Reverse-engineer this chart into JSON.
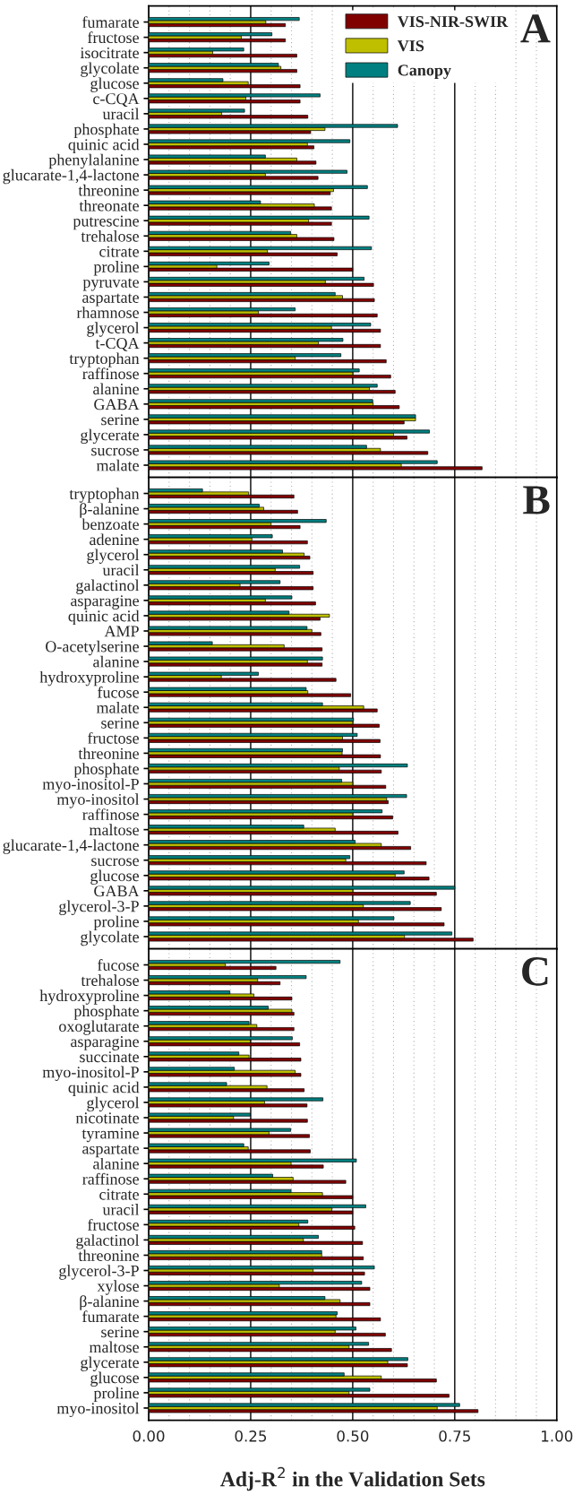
{
  "chart_data": [
    {
      "type": "bar",
      "orientation": "horizontal",
      "annotations": [
        "A"
      ],
      "legend": "top right",
      "grid": "x",
      "tick_labels": "y",
      "categories": [
        "fumarate",
        "fructose",
        "isocitrate",
        "glycolate",
        "glucose",
        "c-CQA",
        "uracil",
        "phosphate",
        "quinic acid",
        "phenylalanine",
        "glucarate-1,4-lactone",
        "threonine",
        "threonate",
        "putrescine",
        "trehalose",
        "citrate",
        "proline",
        "pyruvate",
        "aspartate",
        "rhamnose",
        "glycerol",
        "t-CQA",
        "tryptophan",
        "raffinose",
        "alanine",
        "GABA",
        "serine",
        "glycerate",
        "sucrose",
        "malate"
      ],
      "xlim": [
        0,
        1
      ],
      "xticks": [
        0,
        {
          "value": 0.05,
          "label": null
        },
        {
          "value": 0.1,
          "label": null
        },
        {
          "value": 0.15,
          "label": null
        },
        {
          "value": 0.2,
          "label": null
        },
        0.25,
        {
          "value": 0.3,
          "label": null
        },
        {
          "value": 0.35,
          "label": null
        },
        {
          "value": 0.4,
          "label": null
        },
        {
          "value": 0.45,
          "label": null
        },
        0.5,
        {
          "value": 0.55,
          "label": null
        },
        {
          "value": 0.6,
          "label": null
        },
        {
          "value": 0.65,
          "label": null
        },
        {
          "value": 0.7,
          "label": null
        },
        0.75,
        {
          "value": 0.8,
          "label": null
        },
        {
          "value": 0.85,
          "label": null
        },
        {
          "value": 0.9,
          "label": null
        },
        {
          "value": 0.95,
          "label": null
        },
        1
      ],
      "series": [
        {
          "name": "VIS-NIR-SWIR",
          "color": "#800000",
          "values": [
            0.335,
            0.335,
            0.363,
            0.363,
            0.371,
            0.371,
            0.39,
            0.397,
            0.405,
            0.41,
            0.415,
            0.445,
            0.448,
            0.448,
            0.454,
            0.462,
            0.5,
            0.551,
            0.553,
            0.56,
            0.568,
            0.568,
            0.582,
            0.593,
            0.604,
            0.614,
            0.626,
            0.633,
            0.684,
            0.817
          ]
        },
        {
          "name": "VIS",
          "color": "#bfbf00",
          "values": [
            0.287,
            0.227,
            0.157,
            0.324,
            0.244,
            0.238,
            0.179,
            0.432,
            0.389,
            0.363,
            0.286,
            0.453,
            0.406,
            0.392,
            0.363,
            0.291,
            0.167,
            0.433,
            0.475,
            0.269,
            0.448,
            0.416,
            0.359,
            0.5,
            0.541,
            0.55,
            0.654,
            0.6,
            0.568,
            0.619
          ]
        },
        {
          "name": "Canopy",
          "color": "#008080",
          "values": [
            0.369,
            0.302,
            0.233,
            0.318,
            0.182,
            0.42,
            0.235,
            0.61,
            0.493,
            0.286,
            0.486,
            0.536,
            0.274,
            0.54,
            0.348,
            0.546,
            0.295,
            0.528,
            0.457,
            0.359,
            0.544,
            0.476,
            0.471,
            0.516,
            0.56,
            0.549,
            0.654,
            0.688,
            0.534,
            0.707
          ]
        }
      ]
    },
    {
      "type": "bar",
      "orientation": "horizontal",
      "annotations": [
        "B"
      ],
      "grid": "x",
      "tick_labels": "y",
      "categories": [
        "tryptophan",
        "β-alanine",
        "benzoate",
        "adenine",
        "glycerol",
        "uracil",
        "galactinol",
        "asparagine",
        "quinic acid",
        "AMP",
        "O-acetylserine",
        "alanine",
        "hydroxyproline",
        "fucose",
        "malate",
        "serine",
        "fructose",
        "threonine",
        "phosphate",
        "myo-inositol-P",
        "myo-inositol",
        "raffinose",
        "maltose",
        "glucarate-1,4-lactone",
        "sucrose",
        "glucose",
        "GABA",
        "glycerol-3-P",
        "proline",
        "glycolate"
      ],
      "xlim": [
        0,
        1
      ],
      "xticks": [
        0,
        {
          "value": 0.05,
          "label": null
        },
        {
          "value": 0.1,
          "label": null
        },
        {
          "value": 0.15,
          "label": null
        },
        {
          "value": 0.2,
          "label": null
        },
        0.25,
        {
          "value": 0.3,
          "label": null
        },
        {
          "value": 0.35,
          "label": null
        },
        {
          "value": 0.4,
          "label": null
        },
        {
          "value": 0.45,
          "label": null
        },
        0.5,
        {
          "value": 0.55,
          "label": null
        },
        {
          "value": 0.6,
          "label": null
        },
        {
          "value": 0.65,
          "label": null
        },
        {
          "value": 0.7,
          "label": null
        },
        0.75,
        {
          "value": 0.8,
          "label": null
        },
        {
          "value": 0.85,
          "label": null
        },
        {
          "value": 0.9,
          "label": null
        },
        {
          "value": 0.95,
          "label": null
        },
        1
      ],
      "series": [
        {
          "color": "#800000",
          "values": [
            0.356,
            0.365,
            0.371,
            0.389,
            0.395,
            0.403,
            0.403,
            0.409,
            0.42,
            0.422,
            0.425,
            0.425,
            0.459,
            0.495,
            0.56,
            0.565,
            0.567,
            0.568,
            0.57,
            0.581,
            0.587,
            0.598,
            0.611,
            0.642,
            0.68,
            0.687,
            0.705,
            0.717,
            0.724,
            0.795
          ]
        },
        {
          "color": "#bfbf00",
          "values": [
            0.245,
            0.282,
            0.3,
            0.253,
            0.381,
            0.31,
            0.224,
            0.286,
            0.443,
            0.4,
            0.332,
            0.389,
            0.178,
            0.39,
            0.527,
            0.5,
            0.475,
            0.474,
            0.467,
            0.5,
            0.583,
            0.5,
            0.457,
            0.57,
            0.483,
            0.604,
            0.5,
            0.526,
            0.514,
            0.627
          ]
        },
        {
          "color": "#008080",
          "values": [
            0.132,
            0.271,
            0.435,
            0.303,
            0.328,
            0.37,
            0.322,
            0.351,
            0.344,
            0.388,
            0.156,
            0.426,
            0.269,
            0.386,
            0.426,
            0.502,
            0.511,
            0.475,
            0.634,
            0.473,
            0.632,
            0.572,
            0.38,
            0.506,
            0.493,
            0.626,
            0.75,
            0.641,
            0.601,
            0.743
          ]
        }
      ]
    },
    {
      "type": "bar",
      "orientation": "horizontal",
      "annotations": [
        "C"
      ],
      "grid": "x",
      "xlabel": "Adj-R$^{2}$ in the Validation Sets",
      "categories": [
        "fucose",
        "trehalose",
        "hydroxyproline",
        "phosphate",
        "oxoglutarate",
        "asparagine",
        "succinate",
        "myo-inositol-P",
        "quinic acid",
        "glycerol",
        "nicotinate",
        "tyramine",
        "aspartate",
        "alanine",
        "raffinose",
        "citrate",
        "uracil",
        "fructose",
        "galactinol",
        "threonine",
        "glycerol-3-P",
        "xylose",
        "β-alanine",
        "fumarate",
        "serine",
        "maltose",
        "glycerate",
        "glucose",
        "proline",
        "myo-inositol"
      ],
      "xlim": [
        0,
        1
      ],
      "xticks": [
        {
          "value": 0,
          "label": "0.00"
        },
        {
          "value": 0.05,
          "label": null
        },
        {
          "value": 0.1,
          "label": null
        },
        {
          "value": 0.15,
          "label": null
        },
        {
          "value": 0.2,
          "label": null
        },
        {
          "value": 0.25,
          "label": "0.25"
        },
        {
          "value": 0.3,
          "label": null
        },
        {
          "value": 0.35,
          "label": null
        },
        {
          "value": 0.4,
          "label": null
        },
        {
          "value": 0.45,
          "label": null
        },
        {
          "value": 0.5,
          "label": "0.50"
        },
        {
          "value": 0.55,
          "label": null
        },
        {
          "value": 0.6,
          "label": null
        },
        {
          "value": 0.65,
          "label": null
        },
        {
          "value": 0.7,
          "label": null
        },
        {
          "value": 0.75,
          "label": "0.75"
        },
        {
          "value": 0.8,
          "label": null
        },
        {
          "value": 0.85,
          "label": null
        },
        {
          "value": 0.9,
          "label": null
        },
        {
          "value": 0.95,
          "label": null
        },
        {
          "value": 1,
          "label": "1.00"
        }
      ],
      "series": [
        {
          "color": "#800000",
          "values": [
            0.312,
            0.322,
            0.351,
            0.356,
            0.356,
            0.37,
            0.373,
            0.373,
            0.381,
            0.388,
            0.389,
            0.394,
            0.396,
            0.428,
            0.483,
            0.5,
            0.5,
            0.505,
            0.524,
            0.526,
            0.529,
            0.542,
            0.542,
            0.568,
            0.58,
            0.595,
            0.634,
            0.705,
            0.736,
            0.807
          ]
        },
        {
          "color": "#bfbf00",
          "values": [
            0.188,
            0.267,
            0.258,
            0.351,
            0.265,
            0.249,
            0.246,
            0.359,
            0.29,
            0.284,
            0.208,
            0.295,
            0.244,
            0.349,
            0.354,
            0.426,
            0.449,
            0.368,
            0.379,
            0.424,
            0.403,
            0.32,
            0.469,
            0.459,
            0.457,
            0.491,
            0.586,
            0.57,
            0.491,
            0.707
          ]
        },
        {
          "color": "#008080",
          "values": [
            0.469,
            0.386,
            0.199,
            0.293,
            0.246,
            0.352,
            0.221,
            0.21,
            0.191,
            0.427,
            0.249,
            0.348,
            0.233,
            0.509,
            0.304,
            0.349,
            0.532,
            0.39,
            0.416,
            0.424,
            0.553,
            0.522,
            0.432,
            0.462,
            0.508,
            0.539,
            0.635,
            0.479,
            0.542,
            0.762
          ]
        }
      ]
    }
  ]
}
